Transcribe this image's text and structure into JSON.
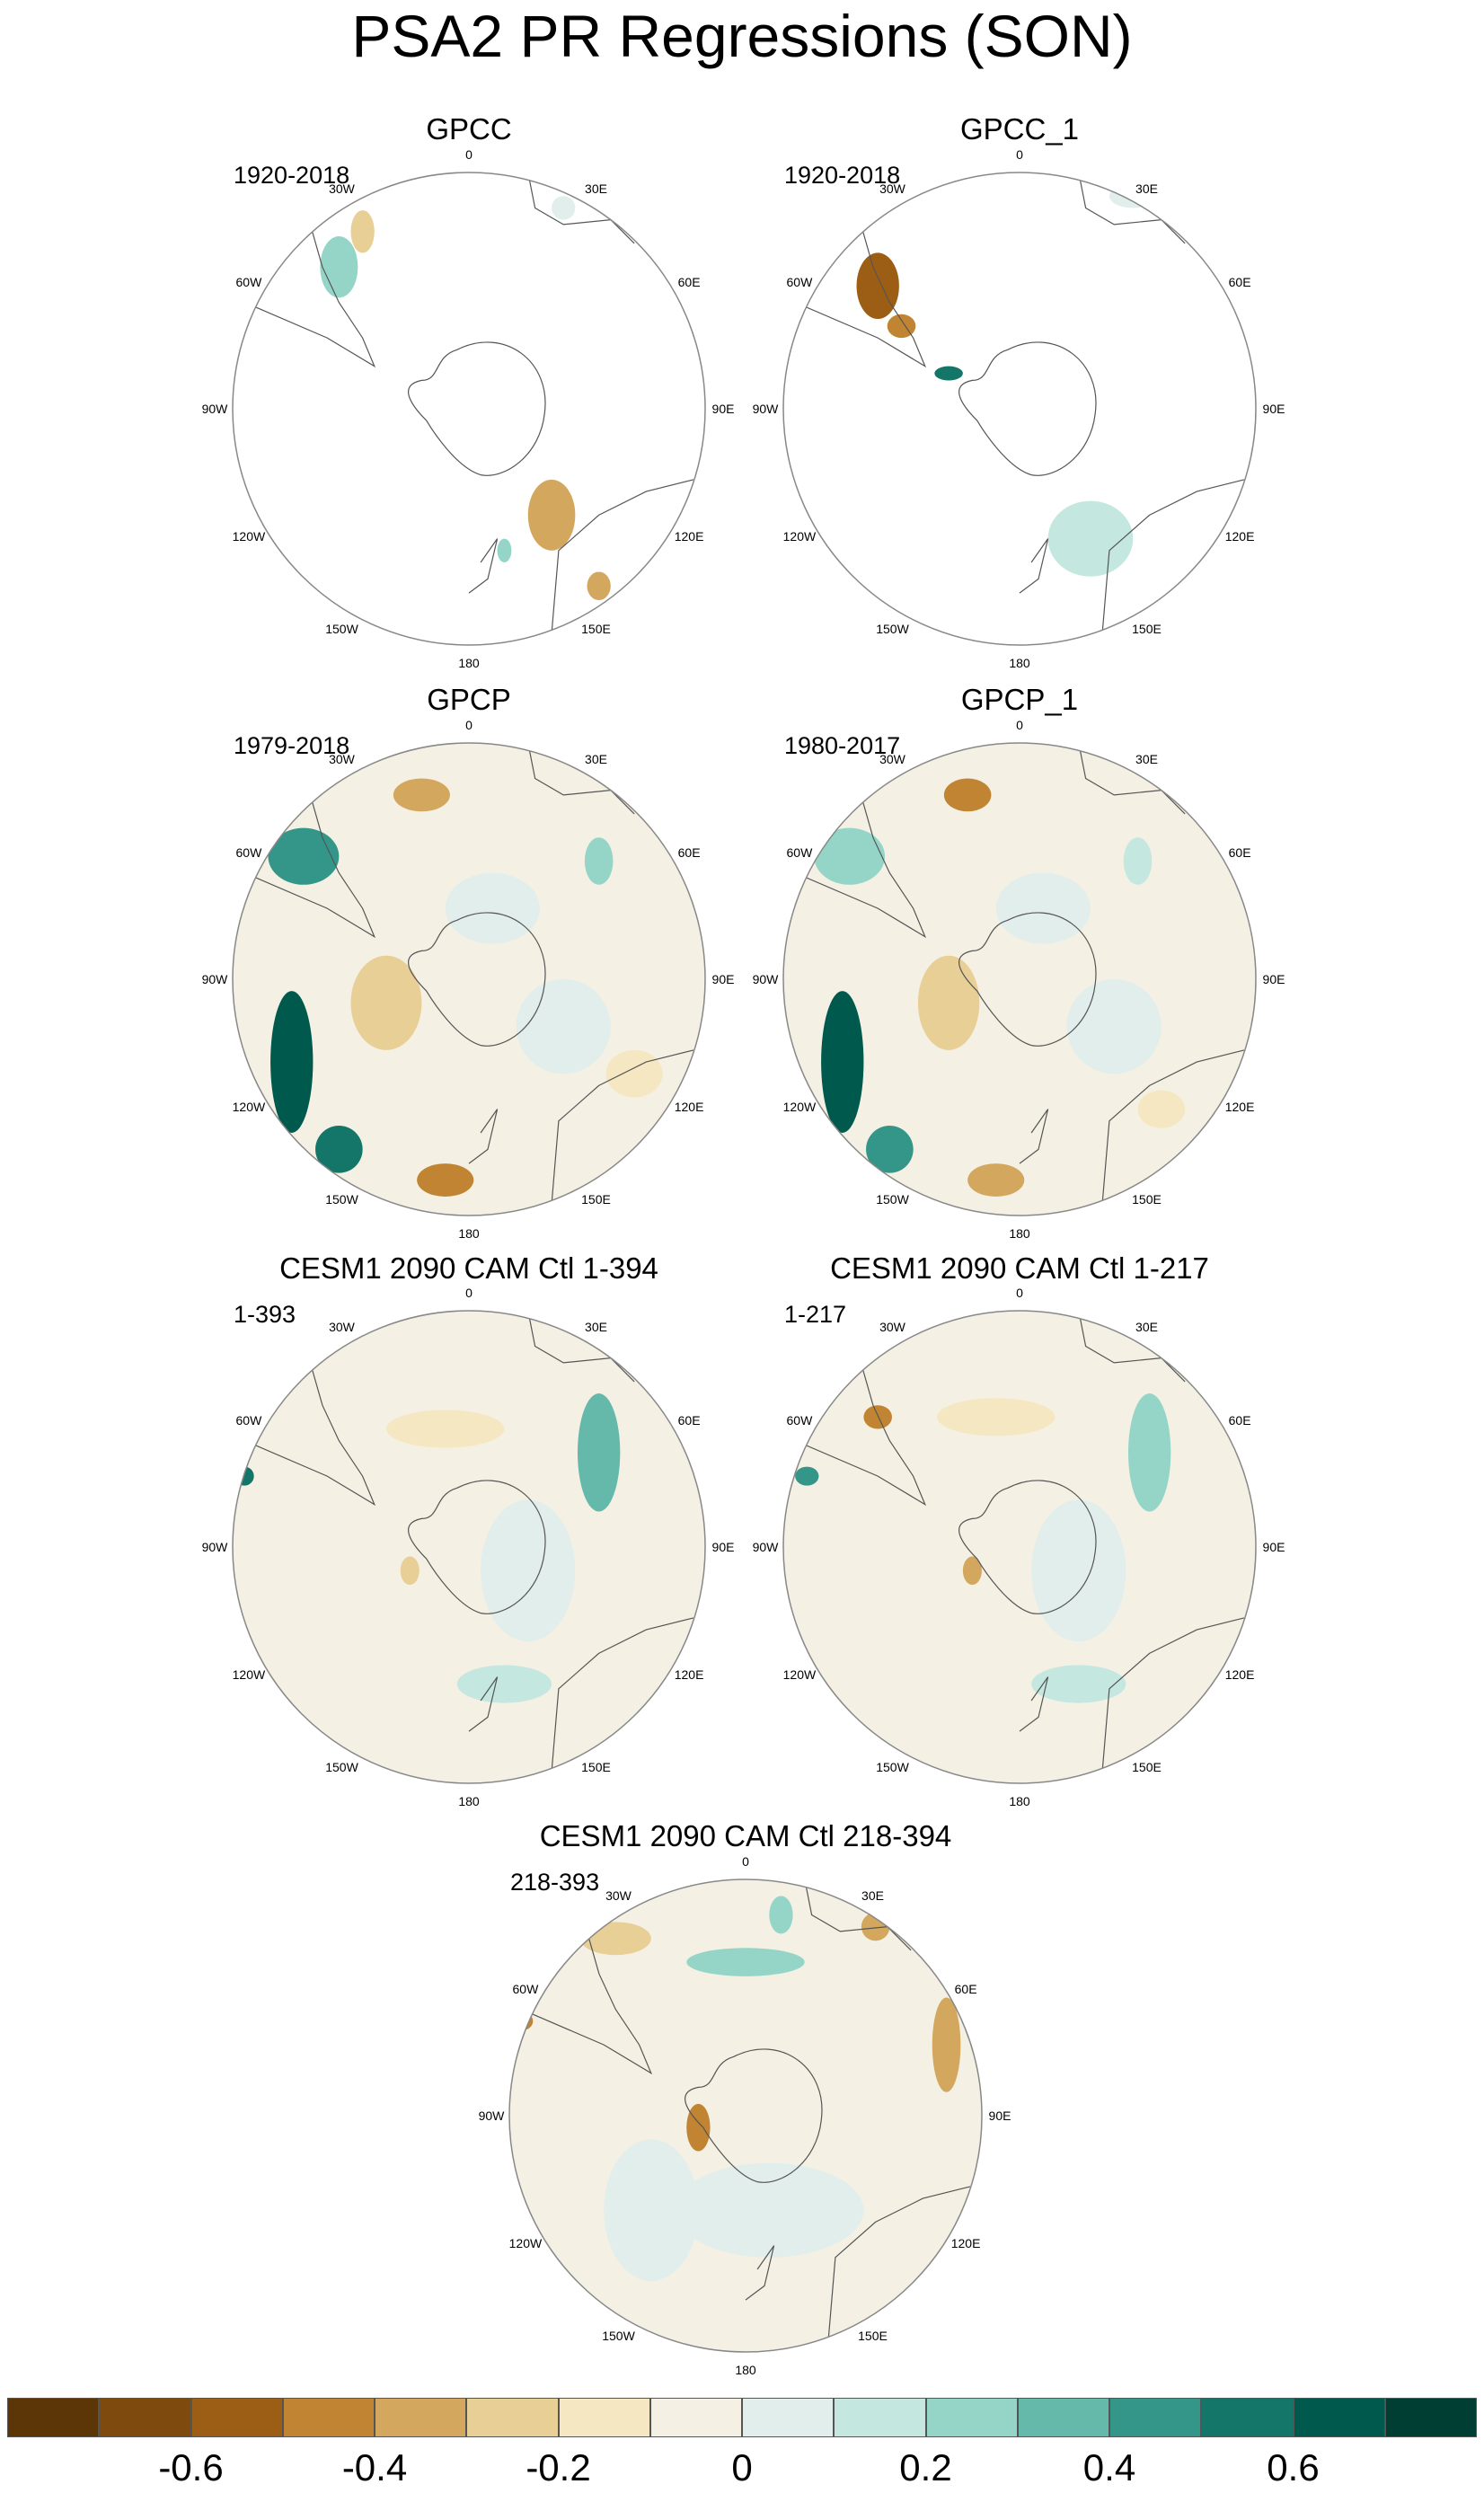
{
  "title": "PSA2 PR Regressions (SON)",
  "lon_labels": {
    "n0": "0",
    "e30": "30E",
    "e60": "60E",
    "e90": "90E",
    "e120": "120E",
    "e150": "150E",
    "s180": "180",
    "w150": "150W",
    "w120": "120W",
    "w90": "90W",
    "w60": "60W",
    "w30": "30W"
  },
  "panels": [
    {
      "id": "gpcc",
      "title": "GPCC",
      "period": "1920-2018",
      "coverage": "land"
    },
    {
      "id": "gpcc1",
      "title": "GPCC_1",
      "period": "1920-2018",
      "coverage": "land"
    },
    {
      "id": "gpcp",
      "title": "GPCP",
      "period": "1979-2018",
      "coverage": "full"
    },
    {
      "id": "gpcp1",
      "title": "GPCP_1",
      "period": "1980-2017",
      "coverage": "full"
    },
    {
      "id": "cesm_a",
      "title": "CESM1 2090 CAM Ctl 1-394",
      "period": "1-393",
      "coverage": "full"
    },
    {
      "id": "cesm_b",
      "title": "CESM1 2090 CAM Ctl 1-217",
      "period": "1-217",
      "coverage": "full"
    },
    {
      "id": "cesm_c",
      "title": "CESM1 2090 CAM Ctl 218-394",
      "period": "218-393",
      "coverage": "full"
    }
  ],
  "colorbar": {
    "colors": [
      "#5c3607",
      "#7f4a0d",
      "#9c5e14",
      "#c08432",
      "#d3a75d",
      "#e7cf95",
      "#f5e7c2",
      "#f4f0e4",
      "#e2eeec",
      "#c4e7df",
      "#95d5c8",
      "#64b9aa",
      "#349589",
      "#137669",
      "#00594d",
      "#003d32"
    ],
    "labels": [
      "-0.6",
      "-0.4",
      "-0.2",
      "0",
      "0.2",
      "0.4",
      "0.6"
    ]
  }
}
